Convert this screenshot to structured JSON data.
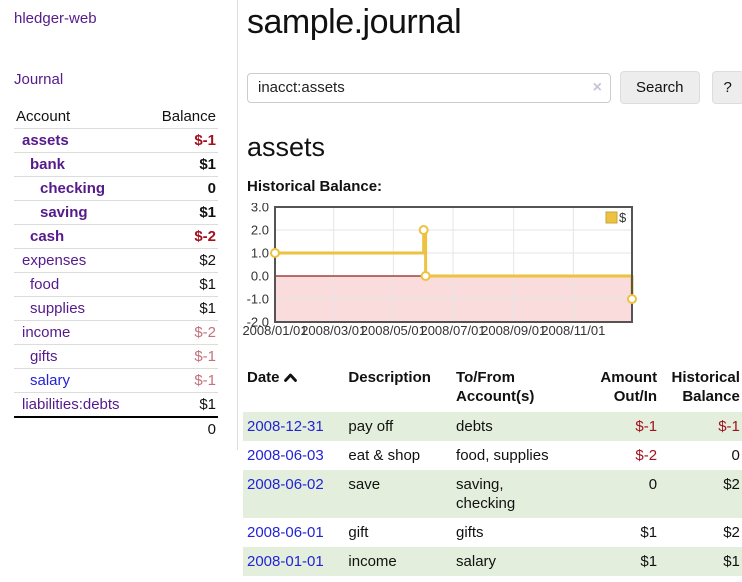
{
  "colors": {
    "link_purple": "#551a8b",
    "link_blue": "#2323d6",
    "negative_red": "#a3101f",
    "negative_faded": "#c4717c",
    "stripe_green": "#e3efdc",
    "button_bg": "#ededed",
    "chart_line_gold": "#edc240",
    "chart_legend_border": "#c9a53d",
    "chart_fill_pink": "#fbdcdc",
    "chart_zero_red": "#8f1f1f",
    "chart_border_gray": "#545454",
    "chart_grid_gray": "#e6e6e6"
  },
  "sidebar": {
    "brand": "hledger-web",
    "nav_journal": "Journal",
    "headers": {
      "account": "Account",
      "balance": "Balance"
    },
    "accounts": [
      {
        "name": "assets",
        "balance": "$-1",
        "depth": 0,
        "bold": true,
        "tone": "neg",
        "link": "purple"
      },
      {
        "name": "bank",
        "balance": "$1",
        "depth": 1,
        "bold": true,
        "tone": "plain",
        "link": "purple"
      },
      {
        "name": "checking",
        "balance": "0",
        "depth": 2,
        "bold": true,
        "tone": "plain",
        "link": "purple"
      },
      {
        "name": "saving",
        "balance": "$1",
        "depth": 2,
        "bold": true,
        "tone": "plain",
        "link": "purple"
      },
      {
        "name": "cash",
        "balance": "$-2",
        "depth": 1,
        "bold": true,
        "tone": "neg",
        "link": "purple"
      },
      {
        "name": "expenses",
        "balance": "$2",
        "depth": 0,
        "bold": false,
        "tone": "plain",
        "link": "purple"
      },
      {
        "name": "food",
        "balance": "$1",
        "depth": 1,
        "bold": false,
        "tone": "plain",
        "link": "purple"
      },
      {
        "name": "supplies",
        "balance": "$1",
        "depth": 1,
        "bold": false,
        "tone": "plain",
        "link": "purple"
      },
      {
        "name": "income",
        "balance": "$-2",
        "depth": 0,
        "bold": false,
        "tone": "neg-faded",
        "link": "purple"
      },
      {
        "name": "gifts",
        "balance": "$-1",
        "depth": 1,
        "bold": false,
        "tone": "neg-faded",
        "link": "purple"
      },
      {
        "name": "salary",
        "balance": "$-1",
        "depth": 1,
        "bold": false,
        "tone": "neg-faded",
        "link": "blue"
      },
      {
        "name": "liabilities:debts",
        "balance": "$1",
        "depth": 0,
        "bold": false,
        "tone": "plain",
        "link": "purple"
      }
    ],
    "total": "0"
  },
  "main": {
    "title": "sample.journal",
    "search": {
      "value": "inacct:assets",
      "clear_icon": "×",
      "button_label": "Search",
      "help_label": "?"
    },
    "account_heading": "assets",
    "chart_label": "Historical Balance:"
  },
  "chart_data": {
    "type": "line",
    "step": true,
    "title": "Historical Balance:",
    "series": [
      {
        "name": "$",
        "points": [
          [
            "2008/01/01",
            1.0
          ],
          [
            "2008/06/01",
            2.0
          ],
          [
            "2008/06/03",
            0.0
          ],
          [
            "2008/12/31",
            -1.0
          ]
        ]
      }
    ],
    "x_range": [
      "2008/01/01",
      "2008/12/31"
    ],
    "ylim": [
      -2.0,
      3.0
    ],
    "y_ticks": [
      "3.0",
      "2.0",
      "1.0",
      "0.0",
      "-1.0",
      "-2.0"
    ],
    "x_ticks": [
      "2008/01/01",
      "2008/03/01",
      "2008/05/01",
      "2008/07/01",
      "2008/09/01",
      "2008/11/01"
    ],
    "legend_position": "top-right",
    "negative_region_shaded": true,
    "grid": true
  },
  "register": {
    "headers": {
      "date": "Date",
      "description": "Description",
      "accounts": "To/From\nAccount(s)",
      "amount": "Amount\nOut/In",
      "balance": "Historical\nBalance"
    },
    "rows": [
      {
        "date": "2008-12-31",
        "description": "pay off",
        "accounts": "debts",
        "amount": "$-1",
        "amount_neg": true,
        "balance": "$-1",
        "balance_neg": true
      },
      {
        "date": "2008-06-03",
        "description": "eat & shop",
        "accounts": "food, supplies",
        "amount": "$-2",
        "amount_neg": true,
        "balance": "0",
        "balance_neg": false
      },
      {
        "date": "2008-06-02",
        "description": "save",
        "accounts": "saving,\nchecking",
        "amount": "0",
        "amount_neg": false,
        "balance": "$2",
        "balance_neg": false
      },
      {
        "date": "2008-06-01",
        "description": "gift",
        "accounts": "gifts",
        "amount": "$1",
        "amount_neg": false,
        "balance": "$2",
        "balance_neg": false
      },
      {
        "date": "2008-01-01",
        "description": "income",
        "accounts": "salary",
        "amount": "$1",
        "amount_neg": false,
        "balance": "$1",
        "balance_neg": false
      }
    ]
  }
}
